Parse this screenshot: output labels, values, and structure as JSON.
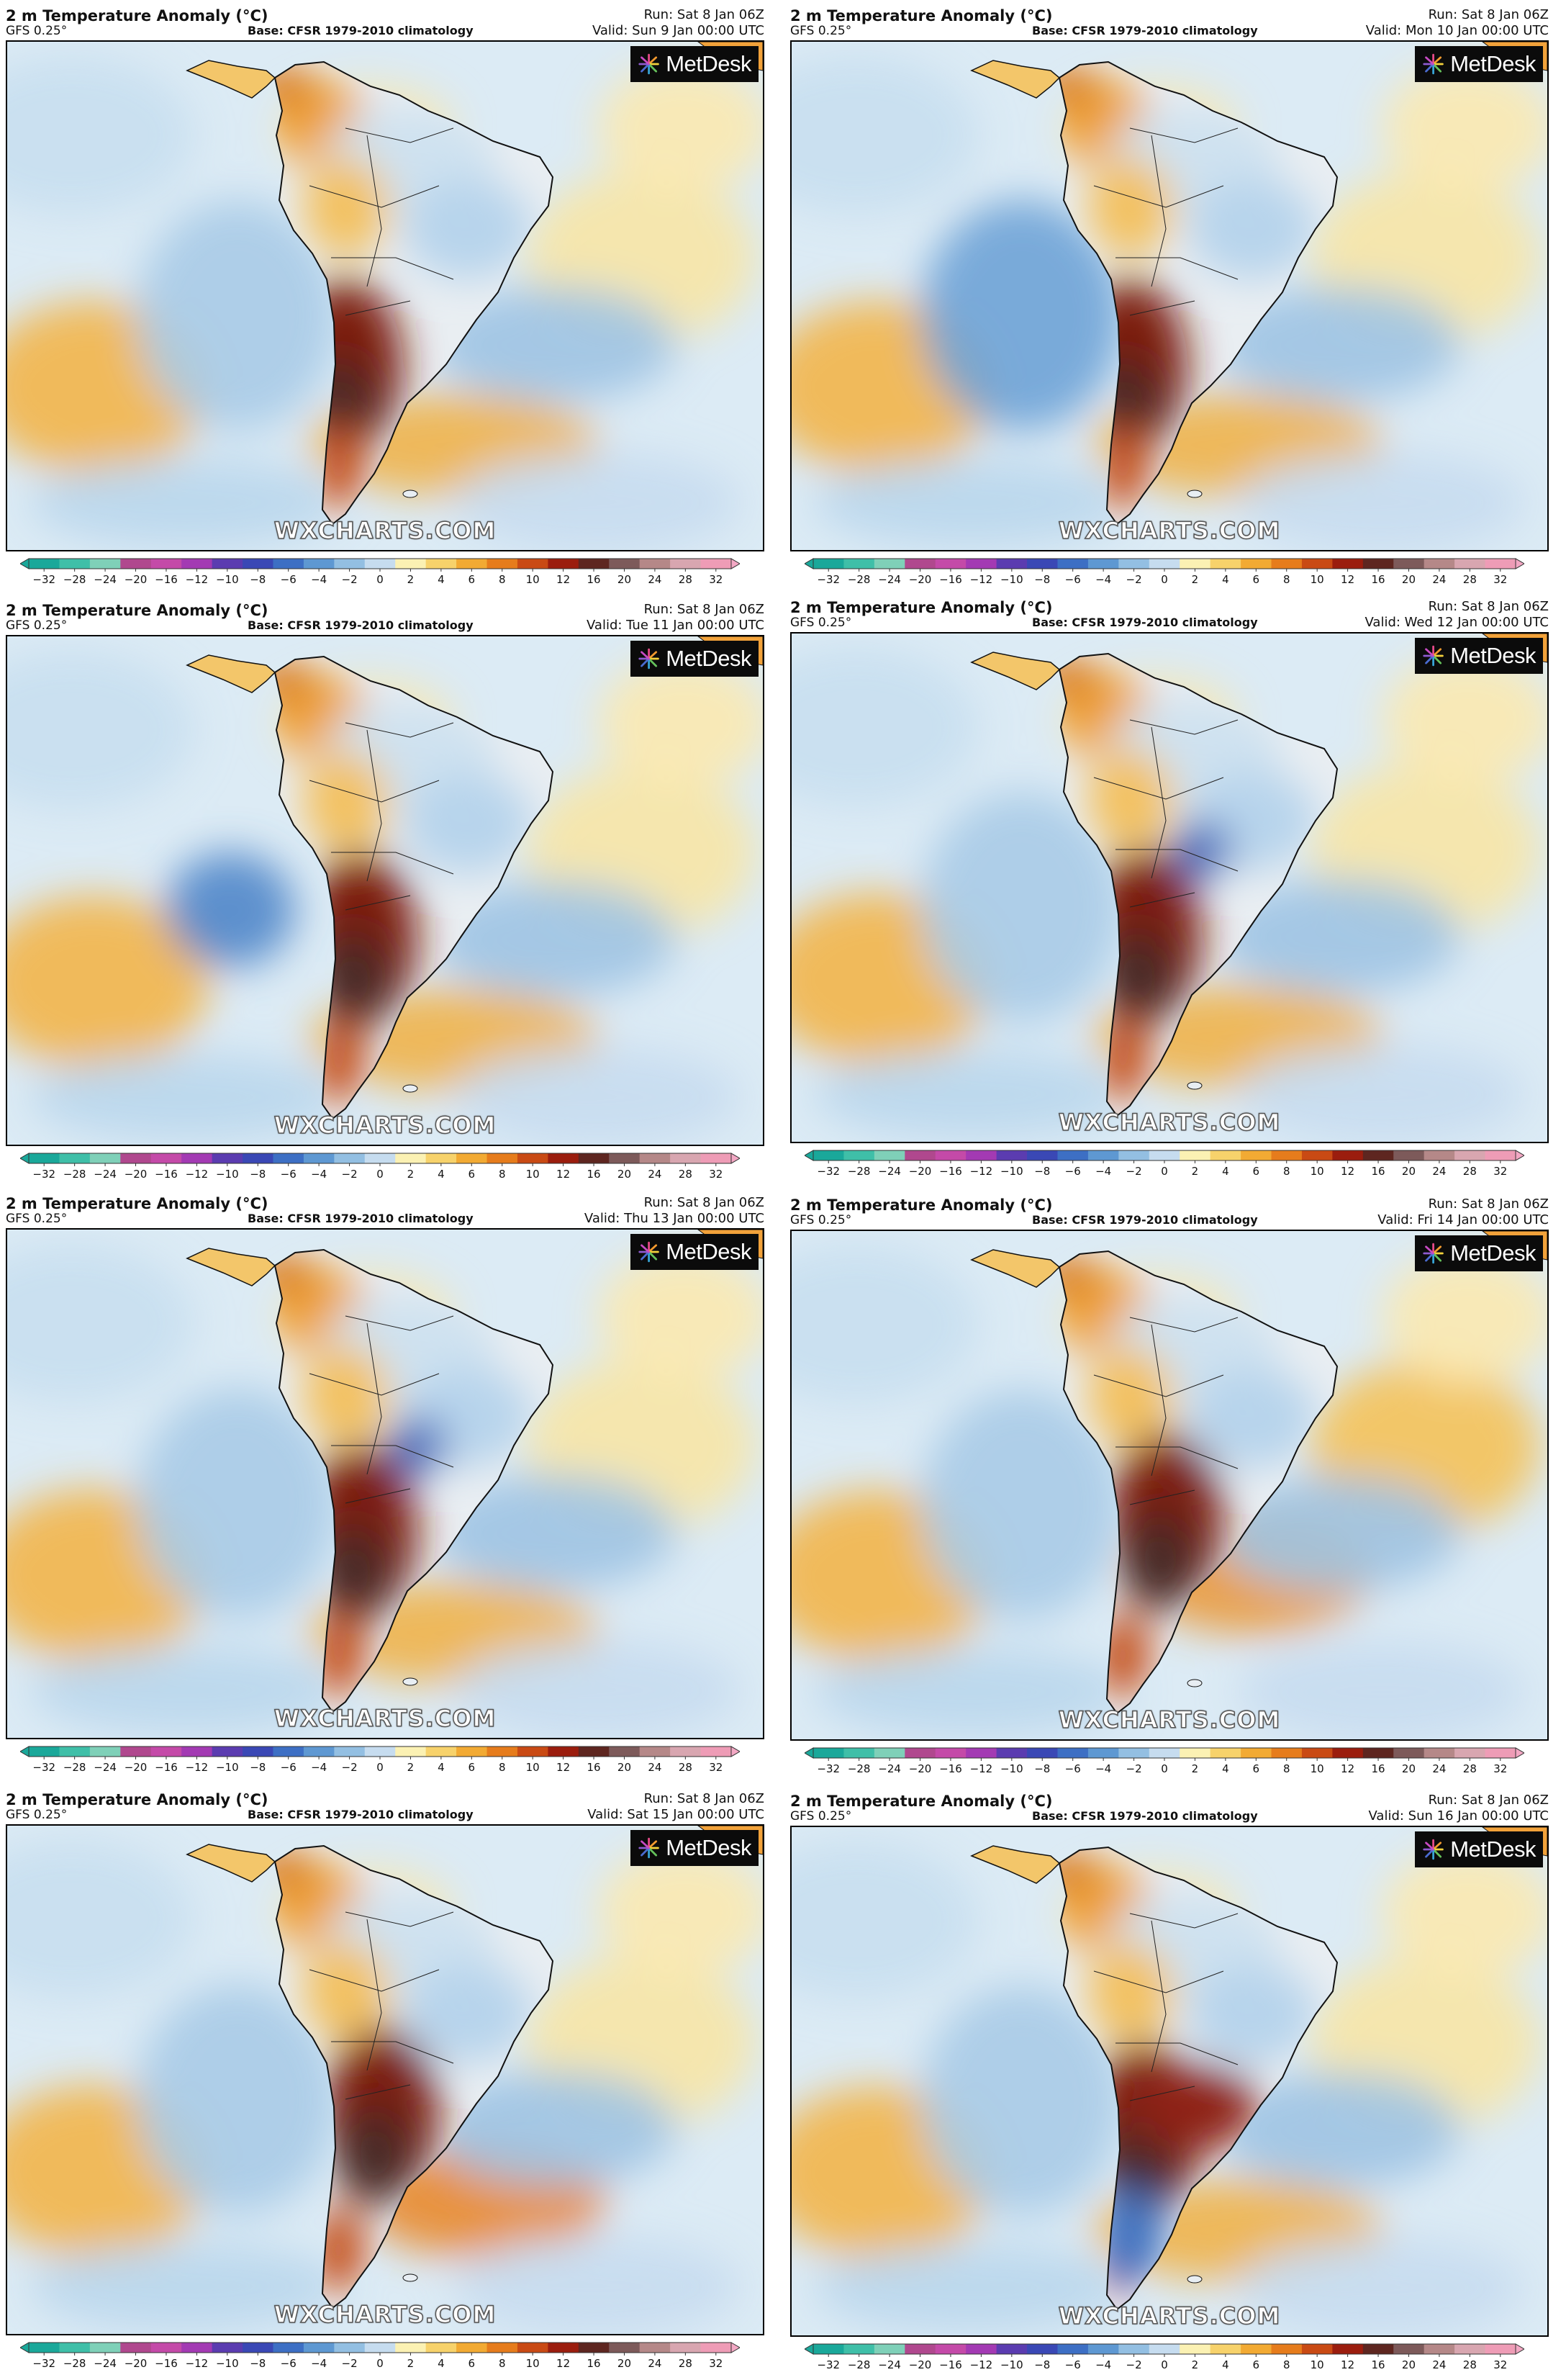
{
  "panels": [
    {
      "title": "2 m Temperature Anomaly (°C)",
      "model": "GFS 0.25°",
      "base": "Base: CFSR 1979-2010 climatology",
      "run": "Run: Sat 8 Jan 06Z",
      "valid": "Valid: Sun 9 Jan 00:00 UTC",
      "logo": "MetDesk",
      "watermark": "WXCHARTS.COM"
    },
    {
      "title": "2 m Temperature Anomaly (°C)",
      "model": "GFS 0.25°",
      "base": "Base: CFSR 1979-2010 climatology",
      "run": "Run: Sat 8 Jan 06Z",
      "valid": "Valid: Mon 10 Jan 00:00 UTC",
      "logo": "MetDesk",
      "watermark": "WXCHARTS.COM"
    },
    {
      "title": "2 m Temperature Anomaly (°C)",
      "model": "GFS 0.25°",
      "base": "Base: CFSR 1979-2010 climatology",
      "run": "Run: Sat 8 Jan 06Z",
      "valid": "Valid: Tue 11 Jan 00:00 UTC",
      "logo": "MetDesk",
      "watermark": "WXCHARTS.COM"
    },
    {
      "title": "2 m Temperature Anomaly (°C)",
      "model": "GFS 0.25°",
      "base": "Base: CFSR 1979-2010 climatology",
      "run": "Run: Sat 8 Jan 06Z",
      "valid": "Valid: Wed 12 Jan 00:00 UTC",
      "logo": "MetDesk",
      "watermark": "WXCHARTS.COM"
    },
    {
      "title": "2 m Temperature Anomaly (°C)",
      "model": "GFS 0.25°",
      "base": "Base: CFSR 1979-2010 climatology",
      "run": "Run: Sat 8 Jan 06Z",
      "valid": "Valid: Thu 13 Jan 00:00 UTC",
      "logo": "MetDesk",
      "watermark": "WXCHARTS.COM"
    },
    {
      "title": "2 m Temperature Anomaly (°C)",
      "model": "GFS 0.25°",
      "base": "Base: CFSR 1979-2010 climatology",
      "run": "Run: Sat 8 Jan 06Z",
      "valid": "Valid: Fri 14 Jan 00:00 UTC",
      "logo": "MetDesk",
      "watermark": "WXCHARTS.COM"
    },
    {
      "title": "2 m Temperature Anomaly (°C)",
      "model": "GFS 0.25°",
      "base": "Base: CFSR 1979-2010 climatology",
      "run": "Run: Sat 8 Jan 06Z",
      "valid": "Valid: Sat 15 Jan 00:00 UTC",
      "logo": "MetDesk",
      "watermark": "WXCHARTS.COM"
    },
    {
      "title": "2 m Temperature Anomaly (°C)",
      "model": "GFS 0.25°",
      "base": "Base: CFSR 1979-2010 climatology",
      "run": "Run: Sat 8 Jan 06Z",
      "valid": "Valid: Sun 16 Jan 00:00 UTC",
      "logo": "MetDesk",
      "watermark": "WXCHARTS.COM"
    }
  ],
  "colorbar": {
    "ticks": [
      "−32",
      "−28",
      "−24",
      "−20",
      "−16",
      "−12",
      "−10",
      "−8",
      "−6",
      "−4",
      "−2",
      "0",
      "2",
      "4",
      "6",
      "8",
      "10",
      "12",
      "16",
      "20",
      "24",
      "28",
      "32"
    ],
    "colors": [
      "#1aa89a",
      "#3fbfa8",
      "#7fd0b8",
      "#b0488e",
      "#c44aa8",
      "#a33ab3",
      "#5b3cb0",
      "#3a48b5",
      "#3d6fc4",
      "#5e98d2",
      "#93bfe2",
      "#c6dcef",
      "#fbf1b3",
      "#f7d26b",
      "#f2aa33",
      "#e67c1c",
      "#c94a14",
      "#9b1d0e",
      "#5e2620",
      "#7d5a5a",
      "#b58888",
      "#d8a6b0",
      "#ee9cb6"
    ],
    "arrow_left": "#1aa89a",
    "arrow_right": "#f3a8c4"
  }
}
